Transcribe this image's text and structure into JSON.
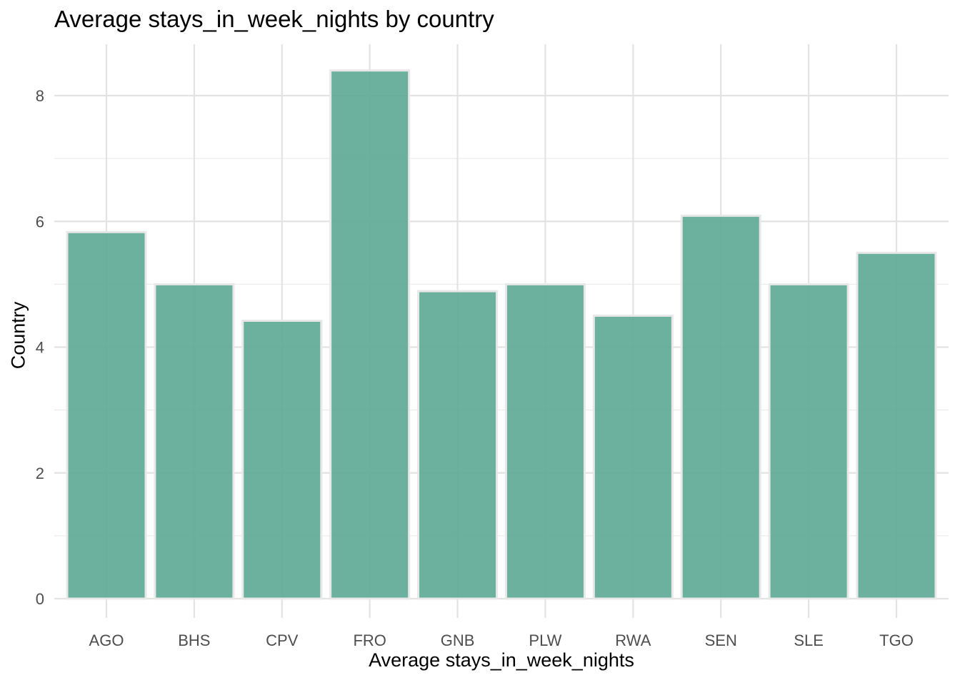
{
  "chart_data": {
    "type": "bar",
    "title": "Average stays_in_week_nights by country",
    "xlabel": "Average stays_in_week_nights",
    "ylabel": "Country",
    "categories": [
      "AGO",
      "BHS",
      "CPV",
      "FRO",
      "GNB",
      "PLW",
      "RWA",
      "SEN",
      "SLE",
      "TGO"
    ],
    "values": [
      5.83,
      5.0,
      4.42,
      8.4,
      4.89,
      5.0,
      4.5,
      6.09,
      5.0,
      5.5
    ],
    "ylim": [
      0,
      8.8
    ],
    "yticks": [
      0,
      2,
      4,
      6,
      8
    ],
    "grid": true,
    "bar_color": "#5ba892",
    "bar_outline": "#e8e8e8",
    "legend": "none"
  }
}
